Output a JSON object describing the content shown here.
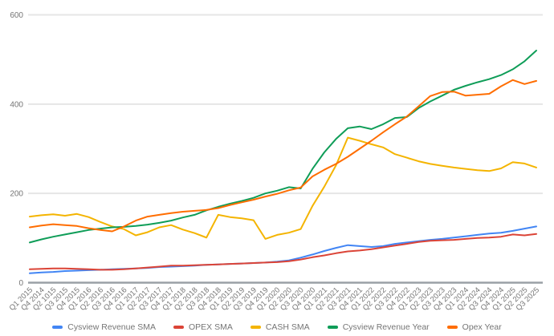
{
  "page": {
    "background": "#ffffff"
  },
  "chart_data": {
    "type": "line",
    "title": "",
    "xlabel": "",
    "ylabel": "",
    "ylim": [
      0,
      600
    ],
    "y_ticks": [
      0,
      200,
      400,
      600
    ],
    "grid": true,
    "legend_position": "bottom",
    "grid_color": "#e6e6e6",
    "axis_color": "#9aa0a6",
    "label_color": "#757575",
    "x_labels": [
      "Q1 2015",
      "Q4 2014",
      "Q2 1015",
      "Q3 2015",
      "Q4 2015",
      "Q1 2016",
      "Q2 2016",
      "Q3 2016",
      "Q4 2016",
      "Q1 2017",
      "Q2 2017",
      "Q3 2017",
      "Q4 2017",
      "Q1 2018",
      "Q2 2018",
      "Q3 2018",
      "Q4 2018",
      "Q1 2019",
      "Q2 2019",
      "Q3 2019",
      "Q4 2019",
      "Q1 2020",
      "Q2 2020",
      "Q3 2020",
      "Q4 2020",
      "Q1 2021",
      "Q2 2021",
      "Q3 2021",
      "Q4 2021",
      "Q1 2022",
      "Q2 2022",
      "Q3 2022",
      "Q4 2022",
      "Q1 2023",
      "Q2 2023",
      "Q3 2023",
      "Q4 2023",
      "Q1 2024",
      "Q2 2024",
      "Q3 2024",
      "Q4 2024",
      "Q1 2025",
      "Q2 2025",
      "Q3 2025"
    ],
    "series": [
      {
        "name": "Cysview Revenue SMA",
        "color": "#4285F4",
        "values": [
          21,
          23,
          24,
          26,
          27,
          28,
          29,
          30,
          31,
          32,
          33,
          35,
          36,
          37,
          38,
          40,
          41,
          42,
          43,
          44,
          45,
          47,
          50,
          56,
          63,
          71,
          78,
          84,
          82,
          80,
          82,
          87,
          90,
          93,
          96,
          98,
          101,
          104,
          107,
          110,
          112,
          116,
          121,
          126
        ]
      },
      {
        "name": "OPEX SMA",
        "color": "#DB4437",
        "values": [
          30,
          31,
          32,
          32,
          31,
          30,
          29,
          29,
          30,
          32,
          34,
          36,
          38,
          38,
          39,
          40,
          41,
          42,
          43,
          44,
          45,
          46,
          48,
          52,
          57,
          61,
          66,
          70,
          72,
          75,
          79,
          83,
          87,
          91,
          94,
          95,
          96,
          98,
          100,
          101,
          103,
          108,
          106,
          109
        ]
      },
      {
        "name": "CASH SMA",
        "color": "#F4B400",
        "values": [
          148,
          151,
          153,
          150,
          154,
          147,
          136,
          126,
          120,
          106,
          113,
          124,
          129,
          119,
          111,
          101,
          152,
          147,
          144,
          140,
          98,
          107,
          112,
          120,
          172,
          215,
          263,
          325,
          318,
          310,
          303,
          288,
          280,
          272,
          266,
          262,
          258,
          255,
          252,
          250,
          256,
          270,
          267,
          258
        ]
      },
      {
        "name": "Cysview Revenue Year",
        "color": "#0F9D58",
        "values": [
          90,
          97,
          103,
          108,
          113,
          118,
          121,
          124,
          125,
          127,
          130,
          134,
          139,
          146,
          152,
          162,
          170,
          177,
          183,
          190,
          200,
          206,
          214,
          211,
          255,
          292,
          322,
          346,
          350,
          344,
          355,
          369,
          371,
          391,
          406,
          419,
          432,
          441,
          449,
          456,
          465,
          478,
          496,
          520
        ]
      },
      {
        "name": "Opex Year",
        "color": "#FF6D00",
        "values": [
          124,
          128,
          131,
          129,
          127,
          122,
          118,
          115,
          126,
          139,
          148,
          152,
          156,
          159,
          161,
          163,
          167,
          174,
          180,
          186,
          193,
          199,
          207,
          213,
          238,
          253,
          266,
          282,
          300,
          318,
          337,
          355,
          372,
          395,
          418,
          427,
          428,
          419,
          421,
          423,
          440,
          454,
          445,
          452
        ]
      }
    ]
  }
}
